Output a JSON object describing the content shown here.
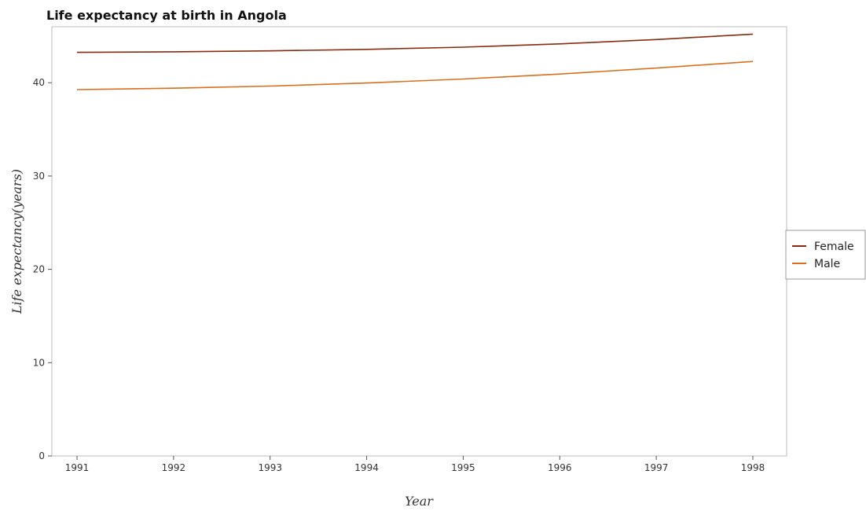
{
  "chart_data": {
    "type": "line",
    "title": "Life expectancy at birth in Angola",
    "xlabel": "Year",
    "ylabel": "Life expectancy(years)",
    "x": [
      "1991",
      "1992",
      "1993",
      "1994",
      "1995",
      "1996",
      "1997",
      "1998"
    ],
    "ylim": [
      0,
      46
    ],
    "yticks": [
      0,
      10,
      20,
      30,
      40
    ],
    "grid": false,
    "legend_position": "right",
    "series": [
      {
        "name": "Female",
        "color": "#8B2A0E",
        "values": [
          43.25,
          43.31,
          43.41,
          43.57,
          43.81,
          44.16,
          44.63,
          45.21
        ]
      },
      {
        "name": "Male",
        "color": "#D9701F",
        "values": [
          39.26,
          39.41,
          39.64,
          39.97,
          40.4,
          40.93,
          41.57,
          42.28
        ]
      }
    ]
  }
}
